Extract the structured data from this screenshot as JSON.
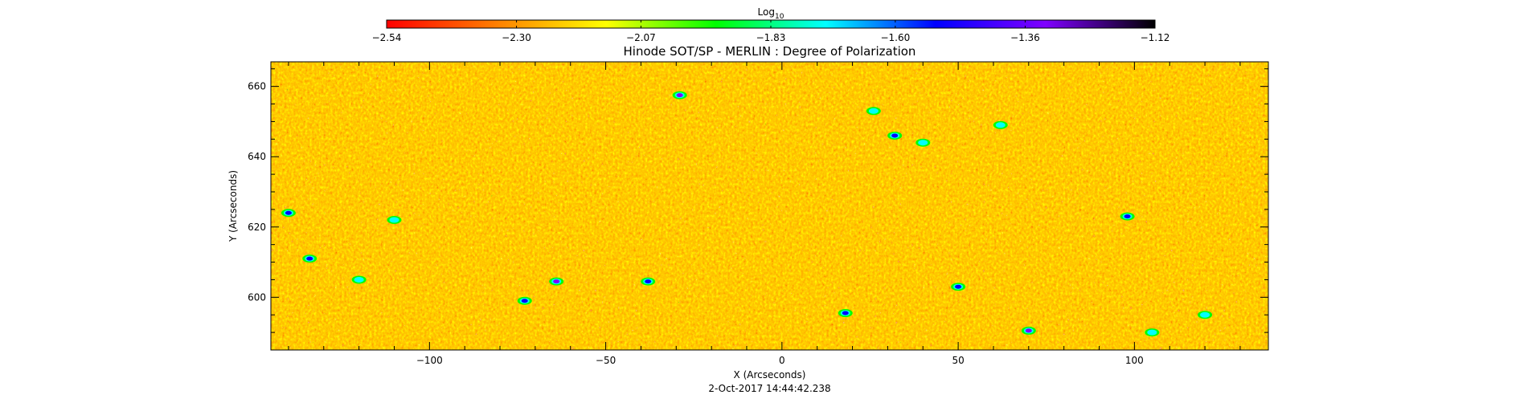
{
  "chart_data": {
    "type": "heatmap",
    "title": "Hinode SOT/SP - MERLIN : Degree of Polarization",
    "xlabel": "X (Arcseconds)",
    "ylabel": "Y (Arcseconds)",
    "timestamp": "2-Oct-2017 14:44:42.238",
    "xlim": [
      -145,
      138
    ],
    "ylim": [
      585,
      667
    ],
    "x_ticks": [
      -100,
      -50,
      0,
      50,
      100
    ],
    "x_tick_labels": [
      "−100",
      "−50",
      "0",
      "50",
      "100"
    ],
    "y_ticks": [
      600,
      620,
      640,
      660
    ],
    "y_tick_labels": [
      "600",
      "620",
      "640",
      "660"
    ],
    "colorbar": {
      "title_base": "Log",
      "title_sub": "10",
      "range": [
        -2.54,
        -1.12
      ],
      "ticks": [
        -2.54,
        -2.3,
        -2.07,
        -1.83,
        -1.6,
        -1.36,
        -1.12
      ],
      "tick_labels": [
        "−2.54",
        "−2.30",
        "−2.07",
        "−1.83",
        "−1.60",
        "−1.36",
        "−1.12"
      ],
      "colors": [
        "#ff0000",
        "#ff7f00",
        "#ffff00",
        "#00ff00",
        "#00ffff",
        "#0000ff",
        "#7f00ff",
        "#000000"
      ]
    },
    "features": [
      {
        "x": -29,
        "y": 657.5,
        "value": -1.4
      },
      {
        "x": -64,
        "y": 604.5,
        "value": -1.4
      },
      {
        "x": -38,
        "y": 604.5,
        "value": -1.5
      },
      {
        "x": 18,
        "y": 595.5,
        "value": -1.45
      },
      {
        "x": 70,
        "y": 590.5,
        "value": -1.4
      },
      {
        "x": -140,
        "y": 624,
        "value": -1.55
      },
      {
        "x": -134,
        "y": 611,
        "value": -1.55
      },
      {
        "x": -73,
        "y": 599,
        "value": -1.55
      },
      {
        "x": 98,
        "y": 623,
        "value": -1.6
      },
      {
        "x": 40,
        "y": 644,
        "value": -1.7
      },
      {
        "x": 32,
        "y": 646,
        "value": -1.6
      },
      {
        "x": 26,
        "y": 653,
        "value": -1.65
      },
      {
        "x": 62,
        "y": 649,
        "value": -1.7
      },
      {
        "x": -110,
        "y": 622,
        "value": -1.65
      },
      {
        "x": -120,
        "y": 605,
        "value": -1.75
      },
      {
        "x": 50,
        "y": 603,
        "value": -1.6
      },
      {
        "x": 105,
        "y": 590,
        "value": -1.7
      },
      {
        "x": 120,
        "y": 595,
        "value": -1.75
      }
    ]
  }
}
